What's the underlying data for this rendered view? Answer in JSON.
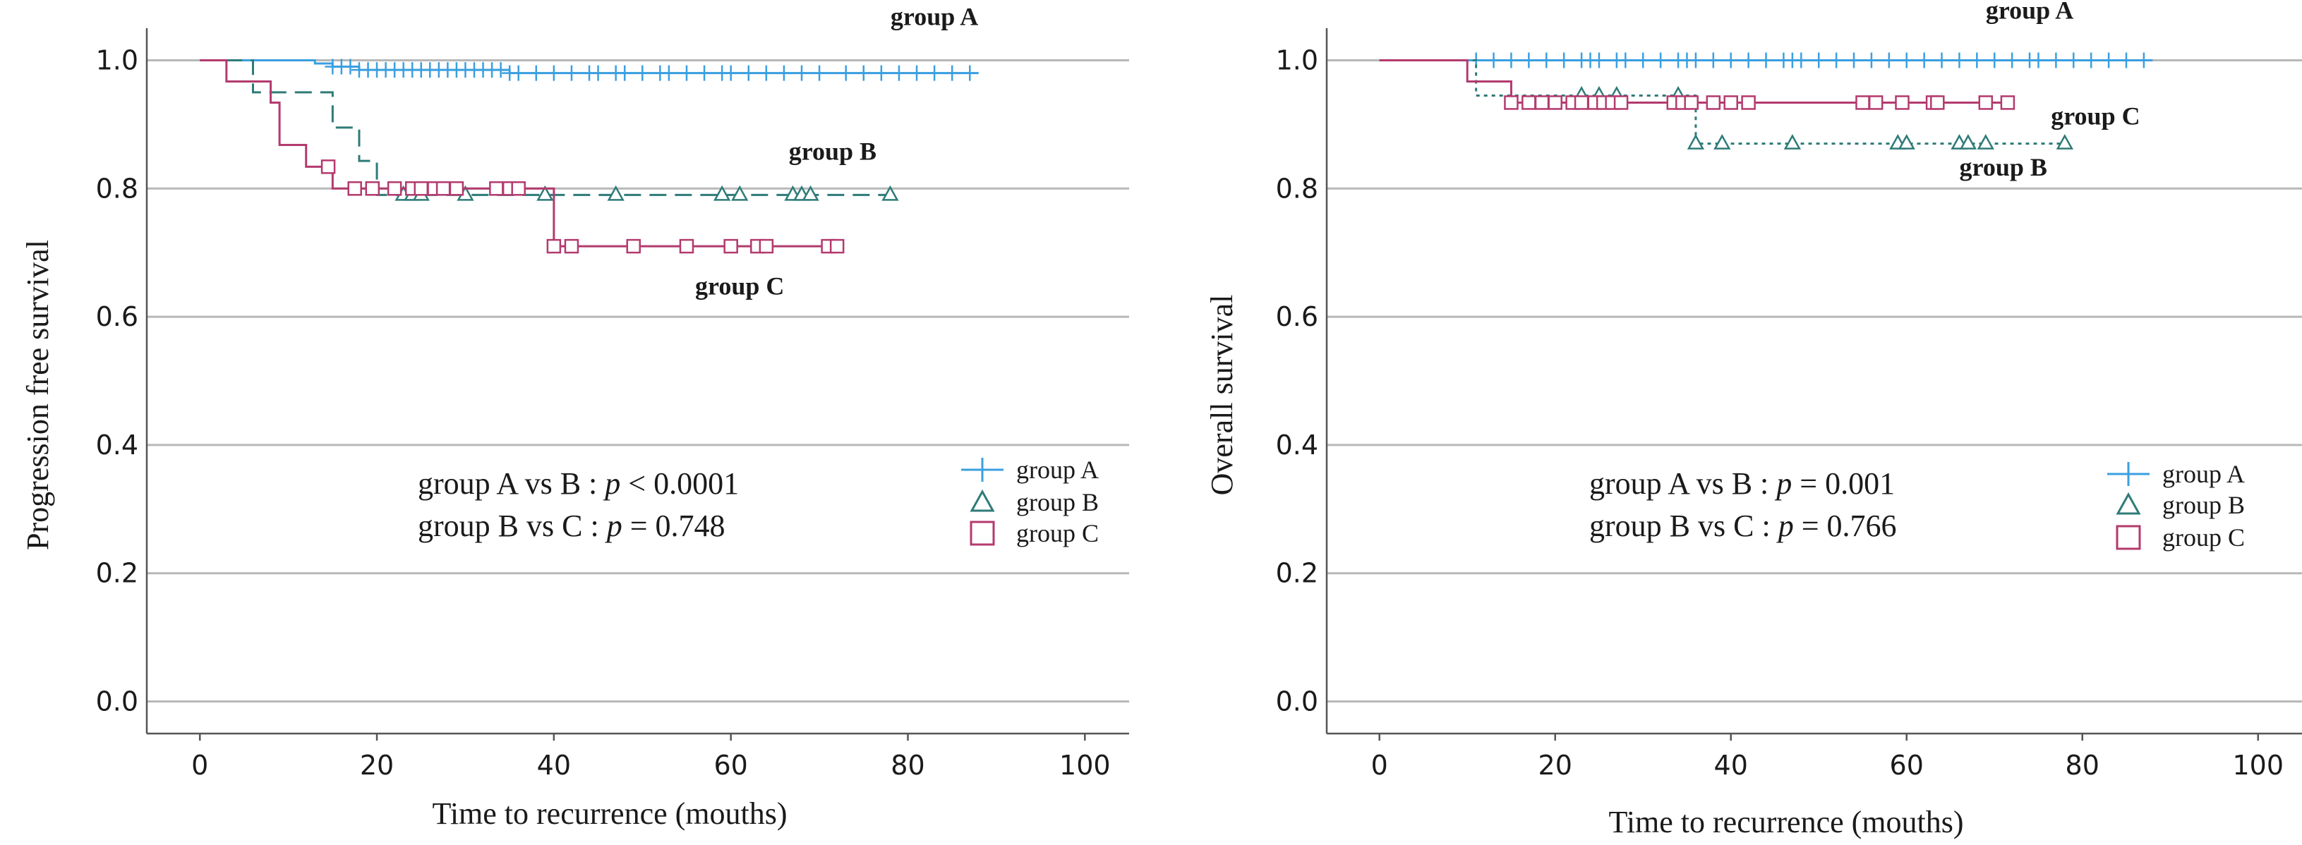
{
  "colors": {
    "group_A": "#3a9fe0",
    "group_B": "#2e7b78",
    "group_C": "#b33a6e"
  },
  "chart_data": [
    {
      "type": "line",
      "subtype": "kaplan-meier",
      "title": "",
      "xlabel": "Time to recurrence (mouths)",
      "ylabel": "Progression free survival",
      "xlim": [
        -6,
        105
      ],
      "ylim": [
        -0.05,
        1.05
      ],
      "x_ticks": [
        0,
        20,
        40,
        60,
        80,
        100
      ],
      "y_ticks": [
        0.0,
        0.2,
        0.4,
        0.6,
        0.8,
        1.0
      ],
      "x_tick_labels": [
        "0",
        "20",
        "40",
        "60",
        "80",
        "100"
      ],
      "y_tick_labels": [
        "0.0",
        "0.2",
        "0.4",
        "0.6",
        "0.8",
        "1.0"
      ],
      "grid": "horizontal",
      "legend_position": "right",
      "legend": [
        {
          "name": "group A",
          "marker": "plus"
        },
        {
          "name": "group B",
          "marker": "triangle"
        },
        {
          "name": "group C",
          "marker": "square"
        }
      ],
      "annotations": [
        {
          "pre": "group A vs B : ",
          "p": "p",
          "post": " < 0.0001"
        },
        {
          "pre": "group B vs C : ",
          "p": "p",
          "post": " = 0.748"
        }
      ],
      "series": [
        {
          "name": "group A",
          "color_key": "group_A",
          "marker": "plus",
          "dash": "",
          "steps": [
            [
              0,
              1.0
            ],
            [
              13,
              0.995
            ],
            [
              15,
              0.99
            ],
            [
              18,
              0.985
            ],
            [
              35,
              0.98
            ],
            [
              88,
              0.98
            ]
          ],
          "censor": [
            15,
            16,
            17,
            18,
            19,
            20,
            21,
            22,
            23,
            24,
            25,
            26,
            27,
            28,
            29,
            30,
            31,
            32,
            33,
            34,
            35,
            36,
            38,
            40,
            42,
            44,
            45,
            47,
            48,
            50,
            52,
            53,
            55,
            57,
            59,
            60,
            62,
            64,
            66,
            68,
            70,
            73,
            75,
            77,
            79,
            81,
            83,
            85,
            87
          ],
          "label": {
            "text": "group A",
            "x": 83,
            "y": 1.055
          }
        },
        {
          "name": "group B",
          "color_key": "group_B",
          "marker": "triangle",
          "dash": "24,12",
          "steps": [
            [
              0,
              1.0
            ],
            [
              6,
              0.95
            ],
            [
              15,
              0.895
            ],
            [
              18,
              0.843
            ],
            [
              20,
              0.79
            ],
            [
              78,
              0.79
            ]
          ],
          "censor": [
            23,
            24,
            25,
            30,
            39,
            47,
            59,
            61,
            67,
            68,
            69,
            78
          ],
          "label": {
            "text": "group B",
            "x": 71.5,
            "y": 0.845
          }
        },
        {
          "name": "group C",
          "color_key": "group_C",
          "marker": "square",
          "dash": "",
          "steps": [
            [
              0,
              1.0
            ],
            [
              3,
              0.967
            ],
            [
              8,
              0.934
            ],
            [
              9,
              0.868
            ],
            [
              12,
              0.834
            ],
            [
              15,
              0.8
            ],
            [
              40,
              0.71
            ],
            [
              72,
              0.71
            ]
          ],
          "censor": [
            14.5,
            17.5,
            19.5,
            22,
            24,
            25,
            26.5,
            27.5,
            29,
            33.5,
            35,
            36,
            40,
            42,
            49,
            55,
            60,
            63,
            64,
            71,
            72
          ],
          "label": {
            "text": "group C",
            "x": 61,
            "y": 0.635
          }
        }
      ]
    },
    {
      "type": "line",
      "subtype": "kaplan-meier",
      "title": "",
      "xlabel": "Time to recurrence (mouths)",
      "ylabel": "Overall survival",
      "xlim": [
        -6,
        105
      ],
      "ylim": [
        -0.05,
        1.05
      ],
      "x_ticks": [
        0,
        20,
        40,
        60,
        80,
        100
      ],
      "y_ticks": [
        0.0,
        0.2,
        0.4,
        0.6,
        0.8,
        1.0
      ],
      "x_tick_labels": [
        "0",
        "20",
        "40",
        "60",
        "80",
        "100"
      ],
      "y_tick_labels": [
        "0.0",
        "0.2",
        "0.4",
        "0.6",
        "0.8",
        "1.0"
      ],
      "grid": "horizontal",
      "legend_position": "right",
      "legend": [
        {
          "name": "group A",
          "marker": "plus"
        },
        {
          "name": "group B",
          "marker": "triangle"
        },
        {
          "name": "group C",
          "marker": "square"
        }
      ],
      "annotations": [
        {
          "pre": "group A vs B : ",
          "p": "p",
          "post": " = 0.001"
        },
        {
          "pre": "group B vs C : ",
          "p": "p",
          "post": " = 0.766"
        }
      ],
      "series": [
        {
          "name": "group A",
          "color_key": "group_A",
          "marker": "plus",
          "dash": "",
          "steps": [
            [
              0,
              1.0
            ],
            [
              88,
              1.0
            ]
          ],
          "censor": [
            11,
            13,
            15,
            17,
            19,
            21,
            23,
            24,
            25,
            27,
            28,
            30,
            32,
            34,
            35,
            36,
            38,
            40,
            42,
            44,
            46,
            47,
            48,
            50,
            52,
            54,
            56,
            58,
            60,
            62,
            64,
            66,
            68,
            70,
            72,
            74,
            75,
            77,
            79,
            81,
            83,
            85,
            87
          ],
          "label": {
            "text": "group A",
            "x": 74,
            "y": 1.065
          }
        },
        {
          "name": "group B",
          "color_key": "group_B",
          "marker": "triangle",
          "dash": "5,6",
          "steps": [
            [
              0,
              1.0
            ],
            [
              11,
              0.945
            ],
            [
              36,
              0.87
            ],
            [
              78,
              0.87
            ]
          ],
          "censor": [
            23,
            25,
            27,
            34,
            36,
            39,
            47,
            59,
            60,
            66,
            67,
            69,
            78
          ],
          "label": {
            "text": "group B",
            "x": 71,
            "y": 0.82
          }
        },
        {
          "name": "group C",
          "color_key": "group_C",
          "marker": "square",
          "dash": "",
          "steps": [
            [
              0,
              1.0
            ],
            [
              10,
              0.967
            ],
            [
              15,
              0.934
            ],
            [
              72,
              0.934
            ]
          ],
          "censor": [
            15,
            17,
            18.5,
            20,
            22,
            23,
            24.5,
            25.5,
            26.5,
            27.5,
            33.5,
            34.5,
            35.5,
            38,
            40,
            42,
            55,
            56.5,
            59.5,
            63,
            63.5,
            69,
            71.5
          ],
          "label": {
            "text": "group C",
            "x": 81.5,
            "y": 0.9
          }
        }
      ]
    }
  ]
}
